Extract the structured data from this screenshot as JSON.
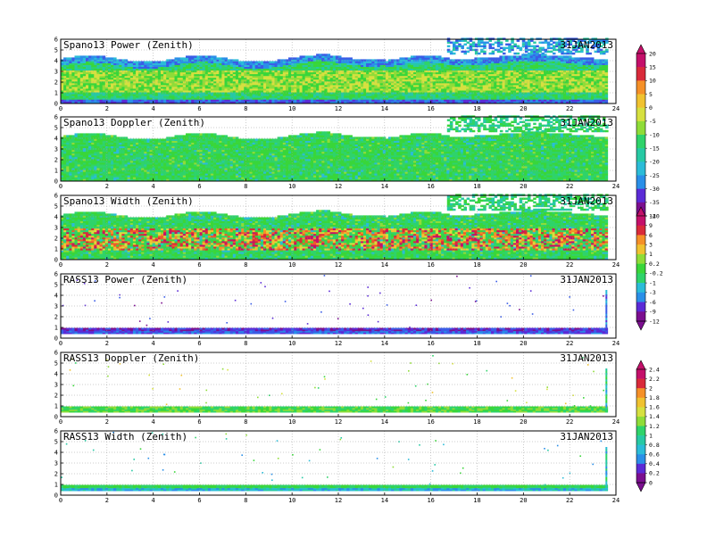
{
  "chart_data": [
    {
      "type": "heatmap",
      "title": "Spano13 Power (Zenith)",
      "date": "31JAN2013",
      "x": {
        "range": [
          0,
          24
        ],
        "ticks": [
          "0",
          "2",
          "4",
          "6",
          "8",
          "10",
          "12",
          "14",
          "16",
          "18",
          "20",
          "22",
          "24"
        ]
      },
      "y": {
        "range": [
          0,
          6
        ],
        "ticks": [
          "0",
          "1",
          "2",
          "3",
          "4",
          "5",
          "6"
        ]
      },
      "grid": true,
      "colorbar": {
        "id": "cb1",
        "labels": [
          "20",
          "15",
          "10",
          "5",
          "0",
          "-5",
          "-10",
          "-15",
          "-20",
          "-25",
          "-30",
          "-35",
          "-40"
        ]
      }
    },
    {
      "type": "heatmap",
      "title": "Spano13 Doppler (Zenith)",
      "date": "31JAN2013",
      "x": {
        "range": [
          0,
          24
        ],
        "ticks": [
          "0",
          "2",
          "4",
          "6",
          "8",
          "10",
          "12",
          "14",
          "16",
          "18",
          "20",
          "22",
          "24"
        ]
      },
      "y": {
        "range": [
          0,
          6
        ],
        "ticks": [
          "0",
          "1",
          "2",
          "3",
          "4",
          "5",
          "6"
        ]
      },
      "grid": true,
      "colorbar": {
        "id": "cb1"
      }
    },
    {
      "type": "heatmap",
      "title": "Spano13 Width (Zenith)",
      "date": "31JAN2013",
      "x": {
        "range": [
          0,
          24
        ],
        "ticks": [
          "0",
          "2",
          "4",
          "6",
          "8",
          "10",
          "12",
          "14",
          "16",
          "18",
          "20",
          "22",
          "24"
        ]
      },
      "y": {
        "range": [
          0,
          6
        ],
        "ticks": [
          "0",
          "1",
          "2",
          "3",
          "4",
          "5",
          "6"
        ]
      },
      "grid": true,
      "colorbar": {
        "id": "cb2",
        "labels": [
          "12",
          "9",
          "6",
          "3",
          "1",
          "0.2",
          "-0.2",
          "-1",
          "-3",
          "-6",
          "-9",
          "-12"
        ]
      }
    },
    {
      "type": "heatmap",
      "title": "RASS13 Power (Zenith)",
      "date": "31JAN2013",
      "x": {
        "range": [
          0,
          24
        ],
        "ticks": [
          "0",
          "2",
          "4",
          "6",
          "8",
          "10",
          "12",
          "14",
          "16",
          "18",
          "20",
          "22",
          "24"
        ]
      },
      "y": {
        "range": [
          0,
          6
        ],
        "ticks": [
          "0",
          "1",
          "2",
          "3",
          "4",
          "5",
          "6"
        ]
      },
      "grid": true,
      "colorbar": {
        "id": "cb2"
      }
    },
    {
      "type": "heatmap",
      "title": "RASS13 Doppler (Zenith)",
      "date": "31JAN2013",
      "x": {
        "range": [
          0,
          24
        ],
        "ticks": [
          "0",
          "2",
          "4",
          "6",
          "8",
          "10",
          "12",
          "14",
          "16",
          "18",
          "20",
          "22",
          "24"
        ]
      },
      "y": {
        "range": [
          0,
          6
        ],
        "ticks": [
          "0",
          "1",
          "2",
          "3",
          "4",
          "5",
          "6"
        ]
      },
      "grid": true,
      "colorbar": {
        "id": "cb3",
        "labels": [
          "2.4",
          "2.2",
          "2",
          "1.8",
          "1.6",
          "1.4",
          "1.2",
          "1",
          "0.8",
          "0.6",
          "0.4",
          "0.2",
          "0"
        ]
      }
    },
    {
      "type": "heatmap",
      "title": "RASS13 Width (Zenith)",
      "date": "31JAN2013",
      "x": {
        "range": [
          0,
          24
        ],
        "ticks": [
          "0",
          "2",
          "4",
          "6",
          "8",
          "10",
          "12",
          "14",
          "16",
          "18",
          "20",
          "22",
          "24"
        ]
      },
      "y": {
        "range": [
          0,
          6
        ],
        "ticks": [
          "0",
          "1",
          "2",
          "3",
          "4",
          "5",
          "6"
        ]
      },
      "grid": true,
      "colorbar": {
        "id": "cb3"
      }
    }
  ],
  "colors": {
    "scale": [
      "#7b0f8f",
      "#5b2bd6",
      "#3a5ce6",
      "#2a8fe8",
      "#2bbcd8",
      "#27c9a4",
      "#2fd36a",
      "#39d63a",
      "#8fdc38",
      "#d6e040",
      "#f0c230",
      "#f59028",
      "#ef5a2a",
      "#d92a3a",
      "#c4106a"
    ],
    "background": "#ffffff",
    "axis": "#000000",
    "grid": "#9a9a9a"
  }
}
